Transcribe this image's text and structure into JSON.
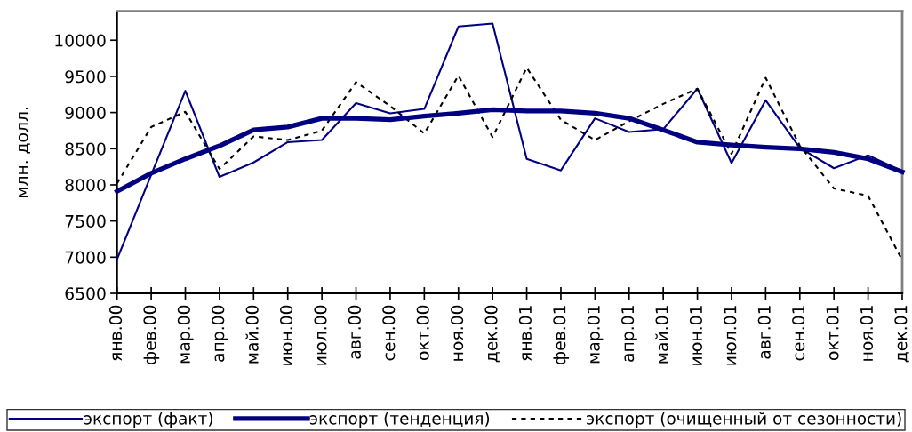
{
  "chart_data": {
    "type": "line",
    "ylabel": "млн. долл.",
    "categories": [
      "янв.00",
      "фев.00",
      "мар.00",
      "апр.00",
      "май.00",
      "июн.00",
      "июл.00",
      "авг.00",
      "сен.00",
      "окт.00",
      "ноя.00",
      "дек.00",
      "янв.01",
      "фев.01",
      "мар.01",
      "апр.01",
      "май.01",
      "июн.01",
      "июл.01",
      "авг.01",
      "сен.01",
      "окт.01",
      "ноя.01",
      "дек.01"
    ],
    "series": [
      {
        "name": "экспорт (факт)",
        "color": "#000080",
        "values": [
          6970,
          8140,
          9300,
          8110,
          8310,
          8590,
          8620,
          9130,
          8990,
          9050,
          10190,
          10230,
          8360,
          8200,
          8920,
          8730,
          8770,
          9330,
          8300,
          9170,
          8510,
          8230,
          8410,
          8190
        ]
      },
      {
        "name": "экспорт (тенденция)",
        "color": "#000080",
        "values": [
          7910,
          8160,
          8360,
          8540,
          8760,
          8800,
          8920,
          8920,
          8900,
          8950,
          8990,
          9040,
          9020,
          9020,
          8990,
          8920,
          8760,
          8590,
          8550,
          8520,
          8500,
          8450,
          8360,
          8180
        ]
      },
      {
        "name": "экспорт (очищенный от сезонности)",
        "color": "#000000",
        "line_style": "dashed",
        "values": [
          8020,
          8800,
          9010,
          8220,
          8670,
          8620,
          8750,
          9420,
          9090,
          8710,
          9510,
          8660,
          9620,
          8900,
          8620,
          8880,
          9120,
          9330,
          8430,
          9480,
          8540,
          7950,
          7850,
          6960
        ]
      }
    ],
    "ylim": [
      6500,
      10400
    ],
    "yticks": [
      6500,
      7000,
      7500,
      8000,
      8500,
      9000,
      9500,
      10000
    ],
    "legend": "bottom",
    "line_style": "solid"
  }
}
